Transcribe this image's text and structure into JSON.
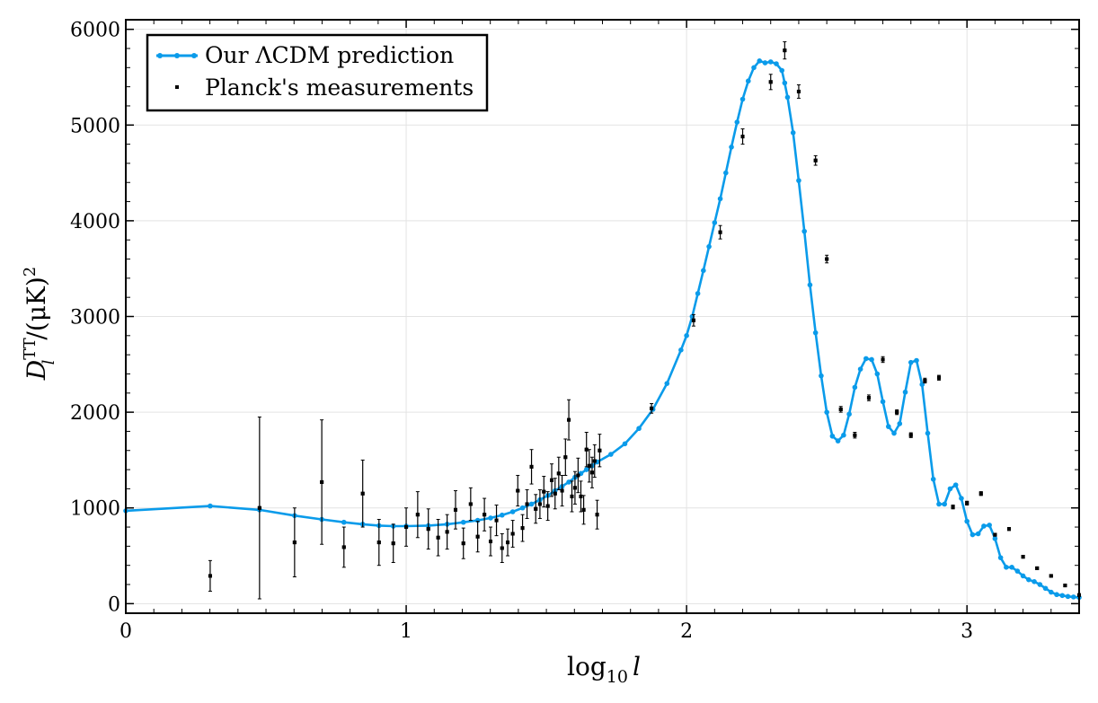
{
  "chart_data": {
    "type": "line",
    "xlabel_main": "log",
    "xlabel_sub": "10",
    "xlabel_var": "l",
    "ylabel_main": "D",
    "ylabel_sup": "TT",
    "ylabel_sub": "l",
    "ylabel_units": "/(μK)",
    "ylabel_units_sup": "2",
    "xlim": [
      0,
      3.4
    ],
    "ylim": [
      -100,
      6100
    ],
    "xticks": [
      0,
      1,
      2,
      3
    ],
    "yticks": [
      0,
      1000,
      2000,
      3000,
      4000,
      5000,
      6000
    ],
    "grid": true,
    "legend_position": "top-left",
    "colors": {
      "prediction": "#0a9bea",
      "measurements": "#000000"
    },
    "series": [
      {
        "name": "Our ΛCDM prediction",
        "kind": "line-with-markers",
        "x": [
          0.0,
          0.301,
          0.477,
          0.602,
          0.699,
          0.778,
          0.845,
          0.903,
          0.954,
          1.0,
          1.079,
          1.146,
          1.204,
          1.255,
          1.301,
          1.342,
          1.38,
          1.415,
          1.447,
          1.477,
          1.505,
          1.531,
          1.556,
          1.58,
          1.602,
          1.623,
          1.643,
          1.663,
          1.681,
          1.73,
          1.78,
          1.83,
          1.88,
          1.93,
          1.98,
          2.0,
          2.02,
          2.04,
          2.06,
          2.08,
          2.1,
          2.12,
          2.14,
          2.16,
          2.18,
          2.2,
          2.22,
          2.24,
          2.26,
          2.28,
          2.3,
          2.32,
          2.34,
          2.35,
          2.36,
          2.38,
          2.4,
          2.42,
          2.44,
          2.46,
          2.48,
          2.5,
          2.52,
          2.54,
          2.56,
          2.58,
          2.6,
          2.62,
          2.64,
          2.66,
          2.68,
          2.7,
          2.72,
          2.74,
          2.76,
          2.78,
          2.8,
          2.82,
          2.84,
          2.86,
          2.88,
          2.9,
          2.92,
          2.94,
          2.96,
          2.98,
          3.0,
          3.02,
          3.04,
          3.06,
          3.08,
          3.1,
          3.12,
          3.14,
          3.16,
          3.18,
          3.2,
          3.22,
          3.24,
          3.26,
          3.28,
          3.3,
          3.32,
          3.34,
          3.36,
          3.38,
          3.4
        ],
        "y": [
          970,
          1020,
          980,
          920,
          880,
          850,
          830,
          815,
          810,
          810,
          815,
          830,
          850,
          870,
          895,
          925,
          960,
          1000,
          1040,
          1085,
          1130,
          1180,
          1225,
          1270,
          1320,
          1360,
          1400,
          1440,
          1480,
          1560,
          1670,
          1830,
          2030,
          2300,
          2650,
          2800,
          3000,
          3240,
          3480,
          3730,
          3980,
          4230,
          4500,
          4770,
          5030,
          5270,
          5460,
          5600,
          5670,
          5650,
          5660,
          5640,
          5570,
          5440,
          5290,
          4920,
          4420,
          3890,
          3330,
          2830,
          2380,
          2000,
          1750,
          1700,
          1760,
          1980,
          2260,
          2450,
          2560,
          2550,
          2400,
          2110,
          1850,
          1780,
          1880,
          2210,
          2520,
          2540,
          2290,
          1780,
          1300,
          1040,
          1040,
          1200,
          1240,
          1100,
          860,
          720,
          730,
          810,
          820,
          680,
          480,
          380,
          380,
          340,
          290,
          250,
          230,
          200,
          160,
          120,
          95,
          85,
          75,
          70,
          65
        ]
      },
      {
        "name": "Planck's measurements",
        "kind": "points-with-errorbars",
        "x": [
          0.301,
          0.477,
          0.602,
          0.699,
          0.778,
          0.845,
          0.903,
          0.954,
          1.0,
          1.041,
          1.079,
          1.114,
          1.146,
          1.176,
          1.204,
          1.23,
          1.255,
          1.279,
          1.301,
          1.322,
          1.342,
          1.362,
          1.38,
          1.398,
          1.415,
          1.431,
          1.447,
          1.462,
          1.477,
          1.491,
          1.505,
          1.519,
          1.531,
          1.544,
          1.556,
          1.568,
          1.58,
          1.591,
          1.602,
          1.613,
          1.623,
          1.633,
          1.643,
          1.653,
          1.663,
          1.672,
          1.681,
          1.69,
          1.875,
          2.025,
          2.12,
          2.2,
          2.3,
          2.35,
          2.4,
          2.46,
          2.5,
          2.55,
          2.6,
          2.65,
          2.7,
          2.75,
          2.8,
          2.85,
          2.9,
          2.95,
          3.0,
          3.05,
          3.1,
          3.15,
          3.2,
          3.25,
          3.3,
          3.35,
          3.4
        ],
        "y": [
          290,
          1000,
          640,
          1270,
          590,
          1150,
          640,
          630,
          800,
          930,
          780,
          690,
          750,
          980,
          630,
          1040,
          700,
          930,
          650,
          870,
          580,
          640,
          730,
          1180,
          790,
          1040,
          1430,
          990,
          1040,
          1170,
          1020,
          1290,
          1150,
          1360,
          1180,
          1530,
          1920,
          1120,
          1210,
          1340,
          1120,
          980,
          1610,
          1440,
          1370,
          1490,
          930,
          1600,
          2040,
          2960,
          3880,
          4880,
          5450,
          5780,
          5350,
          4630,
          3600,
          2030,
          1760,
          2150,
          2550,
          2000,
          1760,
          2330,
          2360,
          1010,
          1050,
          1150,
          720,
          780,
          490,
          370,
          290,
          190,
          90
        ],
        "err": [
          160,
          950,
          360,
          650,
          210,
          350,
          240,
          200,
          200,
          240,
          210,
          190,
          180,
          200,
          160,
          170,
          160,
          170,
          150,
          160,
          150,
          140,
          140,
          160,
          140,
          150,
          180,
          150,
          150,
          160,
          150,
          170,
          160,
          170,
          160,
          190,
          210,
          160,
          170,
          180,
          160,
          150,
          180,
          170,
          160,
          170,
          150,
          170,
          50,
          60,
          70,
          80,
          80,
          90,
          70,
          50,
          40,
          30,
          30,
          30,
          30,
          25,
          25,
          25,
          25,
          20,
          20,
          20,
          15,
          15,
          15,
          10,
          10,
          10,
          10
        ]
      }
    ]
  }
}
